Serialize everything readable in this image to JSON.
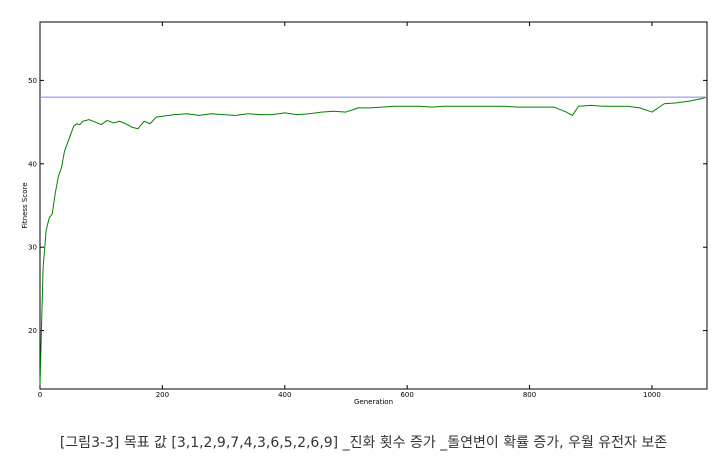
{
  "chart_data": {
    "type": "line",
    "xlabel": "Generation",
    "ylabel": "Fitness Score",
    "xlim": [
      0,
      1090
    ],
    "ylim": [
      13,
      57
    ],
    "xticks": [
      0,
      200,
      400,
      600,
      800,
      1000
    ],
    "yticks": [
      20,
      30,
      40,
      50
    ],
    "grid": false,
    "series": [
      {
        "color": "#008000",
        "x": [
          0,
          5,
          10,
          15,
          20,
          25,
          30,
          35,
          40,
          45,
          50,
          55,
          60,
          65,
          70,
          80,
          90,
          100,
          110,
          120,
          130,
          140,
          150,
          160,
          170,
          180,
          190,
          200,
          220,
          240,
          260,
          280,
          300,
          320,
          340,
          360,
          380,
          400,
          420,
          440,
          460,
          480,
          500,
          520,
          540,
          560,
          580,
          600,
          620,
          640,
          660,
          680,
          700,
          720,
          740,
          760,
          780,
          800,
          820,
          840,
          860,
          870,
          880,
          900,
          920,
          940,
          960,
          980,
          1000,
          1020,
          1040,
          1060,
          1080,
          1090
        ],
        "y": [
          13.5,
          27.5,
          32.0,
          33.5,
          34.0,
          36.5,
          38.5,
          39.5,
          41.5,
          42.5,
          43.5,
          44.5,
          44.8,
          44.7,
          45.1,
          45.3,
          45.0,
          44.7,
          45.2,
          44.9,
          45.1,
          44.8,
          44.4,
          44.2,
          45.1,
          44.8,
          45.6,
          45.7,
          45.9,
          46.0,
          45.8,
          46.0,
          45.9,
          45.8,
          46.0,
          45.9,
          45.9,
          46.1,
          45.9,
          46.0,
          46.2,
          46.3,
          46.2,
          46.7,
          46.7,
          46.8,
          46.9,
          46.9,
          46.9,
          46.8,
          46.9,
          46.9,
          46.9,
          46.9,
          46.9,
          46.9,
          46.8,
          46.8,
          46.8,
          46.8,
          46.2,
          45.8,
          46.9,
          47.0,
          46.9,
          46.9,
          46.9,
          46.7,
          46.2,
          47.2,
          47.3,
          47.5,
          47.8,
          48.0
        ]
      },
      {
        "color": "#8888ee",
        "x": [
          0,
          1090
        ],
        "y": [
          48,
          48
        ]
      }
    ]
  },
  "caption": "[그림3-3] 목표 값 [3,1,2,9,7,4,3,6,5,2,6,9] _진화 횟수 증가 _돌연변이 확률 증가, 우월 유전자 보존"
}
